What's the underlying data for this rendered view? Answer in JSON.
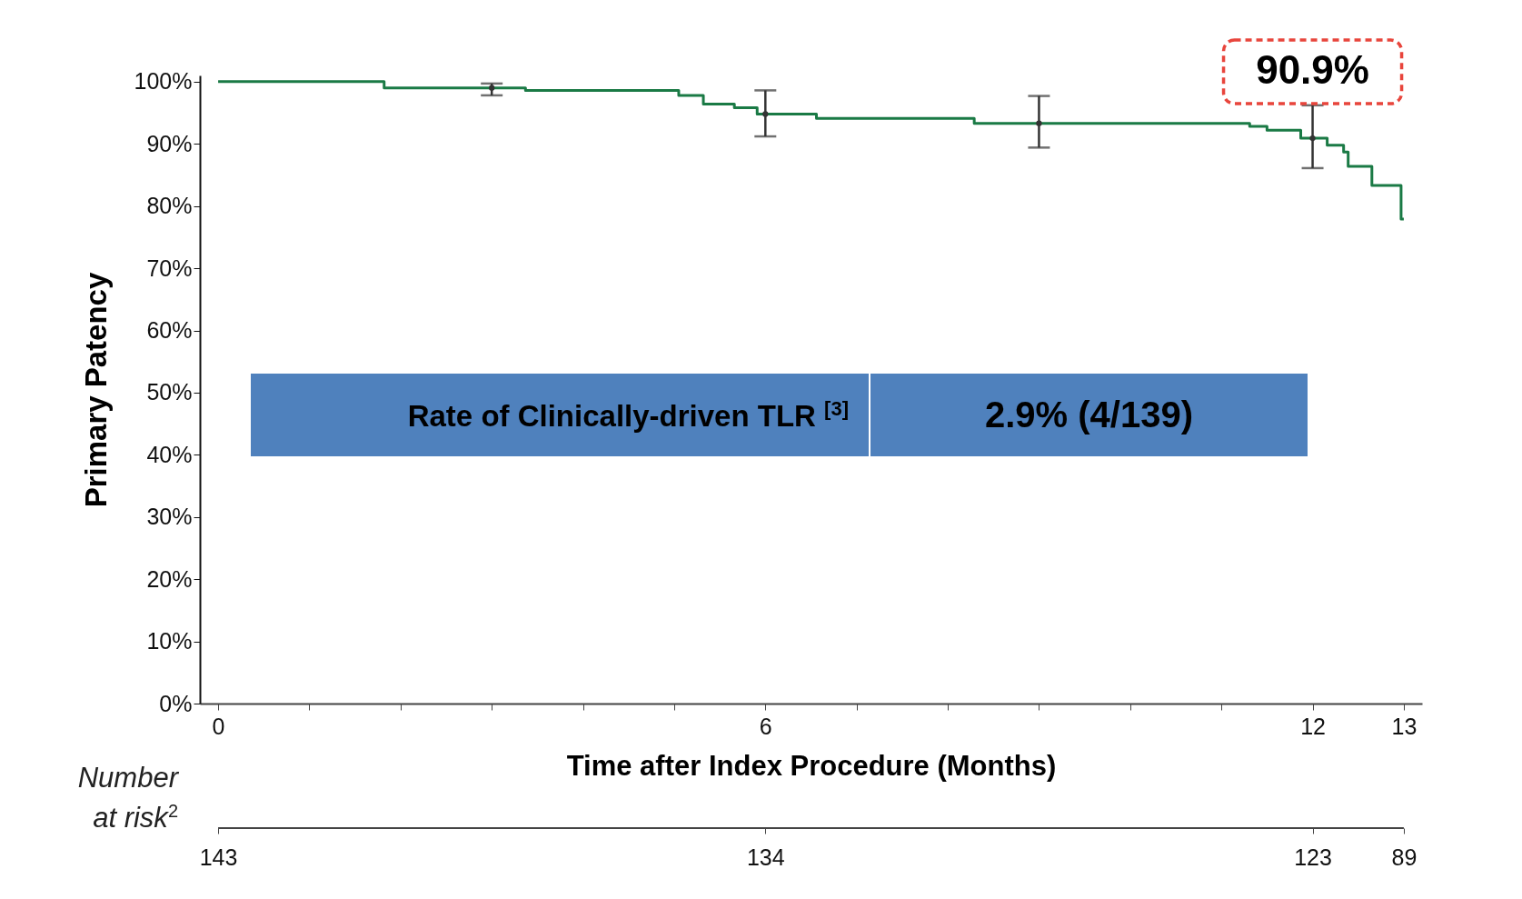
{
  "chart_data": {
    "type": "step",
    "xlabel": "Time after Index Procedure (Months)",
    "ylabel": "Primary Patency",
    "xlim": [
      -0.2,
      13.2
    ],
    "ylim": [
      0,
      101
    ],
    "xticks": [
      0,
      {
        "value": 1,
        "label": null
      },
      {
        "value": 2,
        "label": null
      },
      {
        "value": 3,
        "label": null
      },
      {
        "value": 4,
        "label": null
      },
      {
        "value": 5,
        "label": null
      },
      6,
      {
        "value": 7,
        "label": null
      },
      {
        "value": 8,
        "label": null
      },
      {
        "value": 9,
        "label": null
      },
      {
        "value": 10,
        "label": null
      },
      {
        "value": 11,
        "label": null
      },
      12,
      13
    ],
    "yticks": [
      {
        "value": 0,
        "label": "0%"
      },
      {
        "value": 10,
        "label": "10%"
      },
      {
        "value": 20,
        "label": "20%"
      },
      {
        "value": 30,
        "label": "30%"
      },
      {
        "value": 40,
        "label": "40%"
      },
      {
        "value": 50,
        "label": "50%"
      },
      {
        "value": 60,
        "label": "60%"
      },
      {
        "value": 70,
        "label": "70%"
      },
      {
        "value": 80,
        "label": "80%"
      },
      {
        "value": 90,
        "label": "90%"
      },
      {
        "value": 100,
        "label": "100%"
      }
    ],
    "series": [
      {
        "type": "step",
        "color": "#1a7a45",
        "x": [
          0,
          1.82,
          3.37,
          5.05,
          5.32,
          5.66,
          5.91,
          6.56,
          8.29,
          11.31,
          11.5,
          11.87,
          12.16,
          12.34,
          12.39,
          12.65,
          12.97,
          13
        ],
        "values": [
          100,
          99.0,
          98.6,
          97.8,
          96.4,
          95.8,
          94.8,
          94.1,
          93.3,
          92.8,
          92.2,
          90.9,
          89.8,
          88.7,
          86.4,
          83.3,
          77.9,
          77.9
        ]
      },
      {
        "type": "scatter",
        "color": "#333333",
        "x": [
          3,
          6,
          9,
          12
        ],
        "values": [
          99.0,
          94.8,
          93.3,
          90.9
        ],
        "errors": [
          [
            97.8,
            99.7
          ],
          [
            91.2,
            98.6
          ],
          [
            89.4,
            97.7
          ],
          [
            86.1,
            96.2
          ]
        ]
      }
    ],
    "annotations": [
      {
        "text": "90.9%",
        "x": 12,
        "y": 90.9
      },
      "Rate of Clinically-driven TLR $^{[3]}$",
      "2.9% (4/139)",
      "Number at risk$^{2}$",
      {
        "text": "143",
        "x": 0
      },
      {
        "text": "134",
        "x": 6
      },
      {
        "text": "123",
        "x": 12
      },
      {
        "text": "89",
        "x": 13
      }
    ]
  }
}
